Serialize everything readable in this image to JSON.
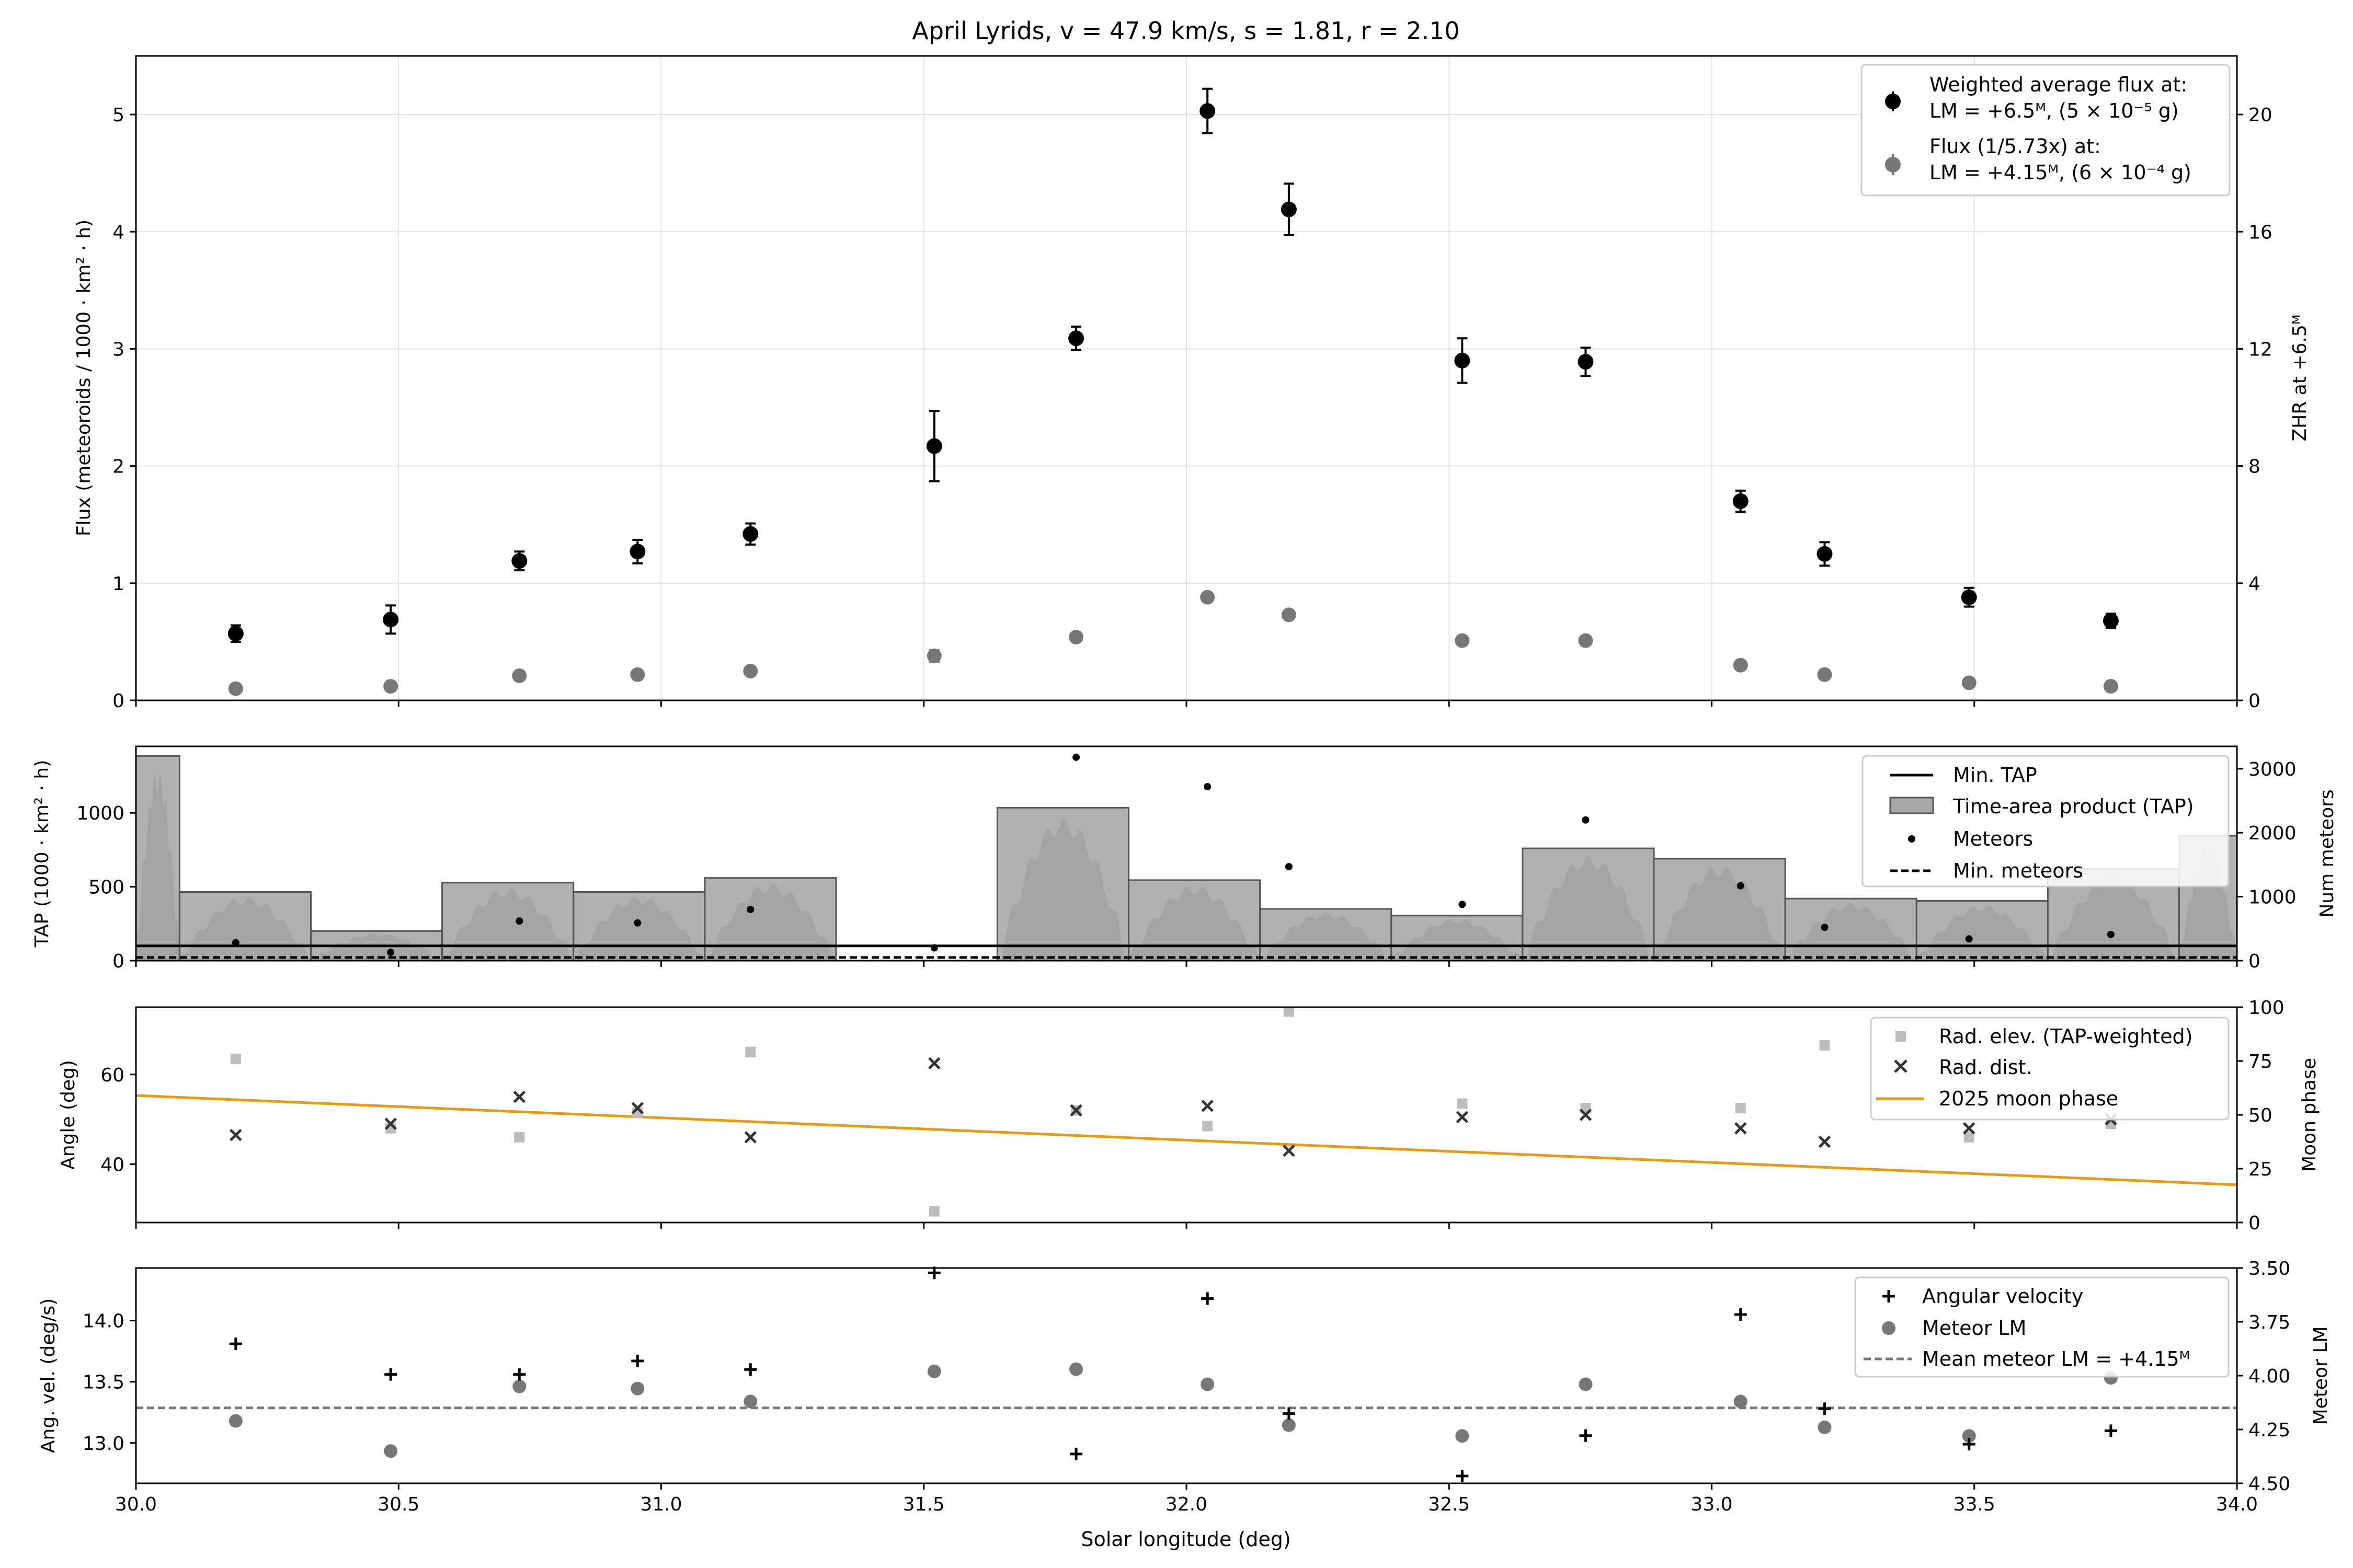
{
  "title": "April Lyrids, v = 47.9 km/s, s = 1.81, r = 2.10",
  "xlabel": "Solar longitude (deg)",
  "xlim": [
    30.0,
    34.0
  ],
  "xticks": [
    "30.0",
    "30.5",
    "31.0",
    "31.5",
    "32.0",
    "32.5",
    "33.0",
    "33.5",
    "34.0"
  ],
  "x_points": [
    30.19,
    30.485,
    30.73,
    30.955,
    31.17,
    31.52,
    31.79,
    32.04,
    32.195,
    32.525,
    32.76,
    33.055,
    33.215,
    33.49,
    33.76
  ],
  "colors": {
    "primary": "#000000",
    "secondary": "#777777",
    "fill_dark": "#7f7f7f",
    "fill_light": "#a8a8a8",
    "square": "#bdbdbd",
    "moon": "#e69c12",
    "grid": "#e3e3e3"
  },
  "chart_data": [
    {
      "id": "flux",
      "type": "scatter",
      "ylabel": "Flux (meteoroids / 1000 · km² · h)",
      "ylim": [
        0,
        5.5
      ],
      "yticks": [
        "0",
        "1",
        "2",
        "3",
        "4",
        "5"
      ],
      "y2label": "ZHR at +6.5ᴹ",
      "y2lim": [
        0,
        22
      ],
      "y2ticks": [
        "0",
        "4",
        "8",
        "12",
        "16",
        "20"
      ],
      "grid": true,
      "legend_position": "top-right",
      "series": [
        {
          "name": "Weighted average flux at: LM = +6.5ᴹ, (5 × 10⁻⁵ g)",
          "legend_lines": [
            "Weighted average flux at:",
            "LM = +6.5ᴹ, (5 × 10⁻⁵ g)"
          ],
          "values": [
            0.57,
            0.69,
            1.19,
            1.27,
            1.42,
            2.17,
            3.09,
            5.03,
            4.19,
            2.9,
            2.89,
            1.7,
            1.25,
            0.88,
            0.68
          ],
          "errors": [
            0.07,
            0.12,
            0.08,
            0.1,
            0.09,
            0.3,
            0.1,
            0.19,
            0.22,
            0.19,
            0.12,
            0.09,
            0.1,
            0.08,
            0.06
          ]
        },
        {
          "name": "Flux (1/5.73x) at: LM = +4.15ᴹ, (6 × 10⁻⁴ g)",
          "legend_lines": [
            "Flux (1/5.73x) at:",
            "LM = +4.15ᴹ, (6 × 10⁻⁴ g)"
          ],
          "values": [
            0.1,
            0.12,
            0.21,
            0.22,
            0.25,
            0.38,
            0.54,
            0.88,
            0.73,
            0.51,
            0.51,
            0.3,
            0.22,
            0.15,
            0.12
          ],
          "errors": [
            0.01,
            0.01,
            0.01,
            0.02,
            0.02,
            0.05,
            0.02,
            0.03,
            0.03,
            0.02,
            0.02,
            0.02,
            0.02,
            0.01,
            0.01
          ]
        }
      ]
    },
    {
      "id": "tap",
      "type": "bar",
      "ylabel": "TAP (1000 · km² · h)",
      "ylim": [
        0,
        1450
      ],
      "yticks": [
        "0",
        "500",
        "1000"
      ],
      "y2label": "Num meteors",
      "y2lim": [
        0,
        3350
      ],
      "y2ticks": [
        "0",
        "1000",
        "2000",
        "3000"
      ],
      "legend_position": "top-right",
      "bins": [
        {
          "x0": 30.0,
          "x1": 30.083,
          "tap": 1385
        },
        {
          "x0": 30.083,
          "x1": 30.333,
          "tap": 465
        },
        {
          "x0": 30.333,
          "x1": 30.583,
          "tap": 200
        },
        {
          "x0": 30.583,
          "x1": 30.833,
          "tap": 528
        },
        {
          "x0": 30.833,
          "x1": 31.083,
          "tap": 465
        },
        {
          "x0": 31.083,
          "x1": 31.333,
          "tap": 560
        },
        {
          "x0": 31.333,
          "x1": 31.333,
          "tap": 0
        },
        {
          "x0": 31.64,
          "x1": 31.89,
          "tap": 1035
        },
        {
          "x0": 31.89,
          "x1": 32.14,
          "tap": 545
        },
        {
          "x0": 32.14,
          "x1": 32.39,
          "tap": 350
        },
        {
          "x0": 32.39,
          "x1": 32.64,
          "tap": 305
        },
        {
          "x0": 32.64,
          "x1": 32.89,
          "tap": 760
        },
        {
          "x0": 32.89,
          "x1": 33.14,
          "tap": 690
        },
        {
          "x0": 33.14,
          "x1": 33.39,
          "tap": 420
        },
        {
          "x0": 33.39,
          "x1": 33.64,
          "tap": 405
        },
        {
          "x0": 33.64,
          "x1": 33.89,
          "tap": 620
        },
        {
          "x0": 33.89,
          "x1": 34.0,
          "tap": 845
        }
      ],
      "meteors": [
        280,
        130,
        620,
        590,
        800,
        200,
        3180,
        2720,
        1470,
        880,
        2200,
        1170,
        520,
        340,
        410
      ],
      "min_tap": 100,
      "min_meteors": 50,
      "legend": [
        "Min. TAP",
        "Time-area product (TAP)",
        "Meteors",
        "Min. meteors"
      ]
    },
    {
      "id": "angles",
      "type": "scatter",
      "ylabel": "Angle (deg)",
      "ylim": [
        27,
        75
      ],
      "yticks": [
        "40",
        "60"
      ],
      "y2label": "Moon phase",
      "y2lim": [
        0,
        100
      ],
      "y2ticks": [
        "0",
        "25",
        "50",
        "75",
        "100"
      ],
      "legend_position": "top-right",
      "rad_elev": [
        63.5,
        48,
        46,
        51.5,
        65,
        29.5,
        52,
        48.5,
        74,
        53.5,
        52.5,
        52.5,
        66.5,
        46,
        49
      ],
      "rad_dist": [
        46.5,
        49,
        55,
        52.5,
        46,
        62.5,
        52,
        53,
        43,
        50.5,
        51,
        48,
        45,
        48,
        50
      ],
      "moon_phase": {
        "x": [
          30.0,
          34.0
        ],
        "y": [
          59,
          17.5
        ]
      },
      "legend": [
        "Rad. elev. (TAP-weighted)",
        "Rad. dist.",
        "2025 moon phase"
      ]
    },
    {
      "id": "velocity",
      "type": "scatter",
      "ylabel": "Ang. vel. (deg/s)",
      "ylim": [
        12.67,
        14.43
      ],
      "yticks": [
        "13.0",
        "13.5",
        "14.0"
      ],
      "y2label": "Meteor LM",
      "y2lim": [
        4.5,
        3.5
      ],
      "y2ticks": [
        "3.50",
        "3.75",
        "4.00",
        "4.25",
        "4.50"
      ],
      "legend_position": "top-right",
      "angular_velocity": [
        13.81,
        13.56,
        13.56,
        13.67,
        13.6,
        14.39,
        12.91,
        14.18,
        13.24,
        12.73,
        13.06,
        14.05,
        13.28,
        12.99,
        13.1
      ],
      "meteor_lm": [
        4.21,
        4.35,
        4.05,
        4.06,
        4.12,
        3.98,
        3.97,
        4.04,
        4.23,
        4.28,
        4.04,
        4.12,
        4.24,
        4.28,
        4.01
      ],
      "mean_lm": 4.15,
      "legend": [
        "Angular velocity",
        "Meteor LM",
        "Mean meteor LM = +4.15ᴹ"
      ]
    }
  ]
}
